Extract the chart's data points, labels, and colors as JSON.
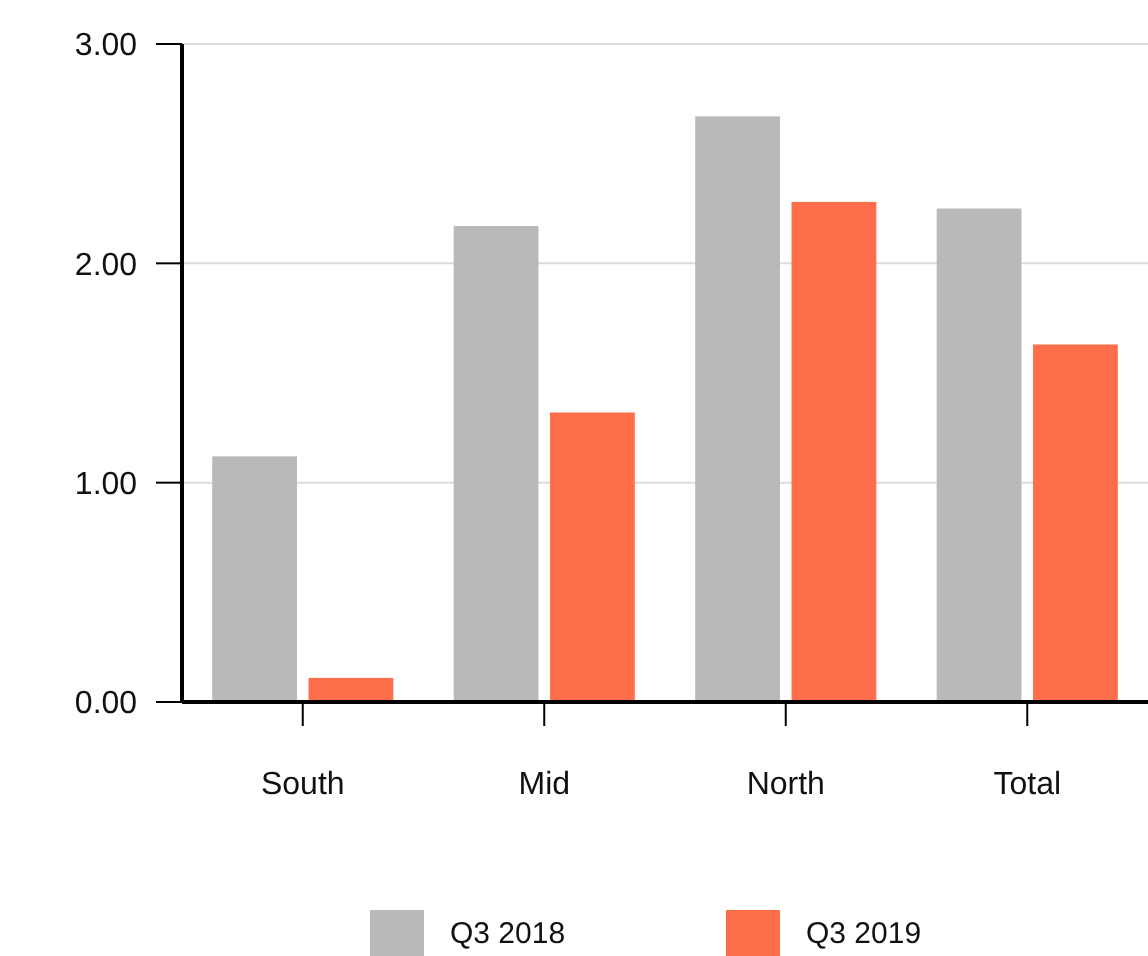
{
  "chart_data": {
    "type": "bar",
    "categories": [
      "South",
      "Mid",
      "North",
      "Total"
    ],
    "series": [
      {
        "name": "Q3 2018",
        "color": "#b9b9b9",
        "values": [
          1.12,
          2.17,
          2.67,
          2.25
        ]
      },
      {
        "name": "Q3 2019",
        "color": "#ff6e4a",
        "values": [
          0.11,
          1.32,
          2.28,
          1.63
        ]
      }
    ],
    "ylim": [
      0,
      3
    ],
    "yticks": [
      {
        "value": 0,
        "label": "0.00"
      },
      {
        "value": 1,
        "label": "1.00"
      },
      {
        "value": 2,
        "label": "2.00"
      },
      {
        "value": 3,
        "label": "3.00"
      }
    ],
    "grid": "y",
    "legend": "bottom"
  }
}
